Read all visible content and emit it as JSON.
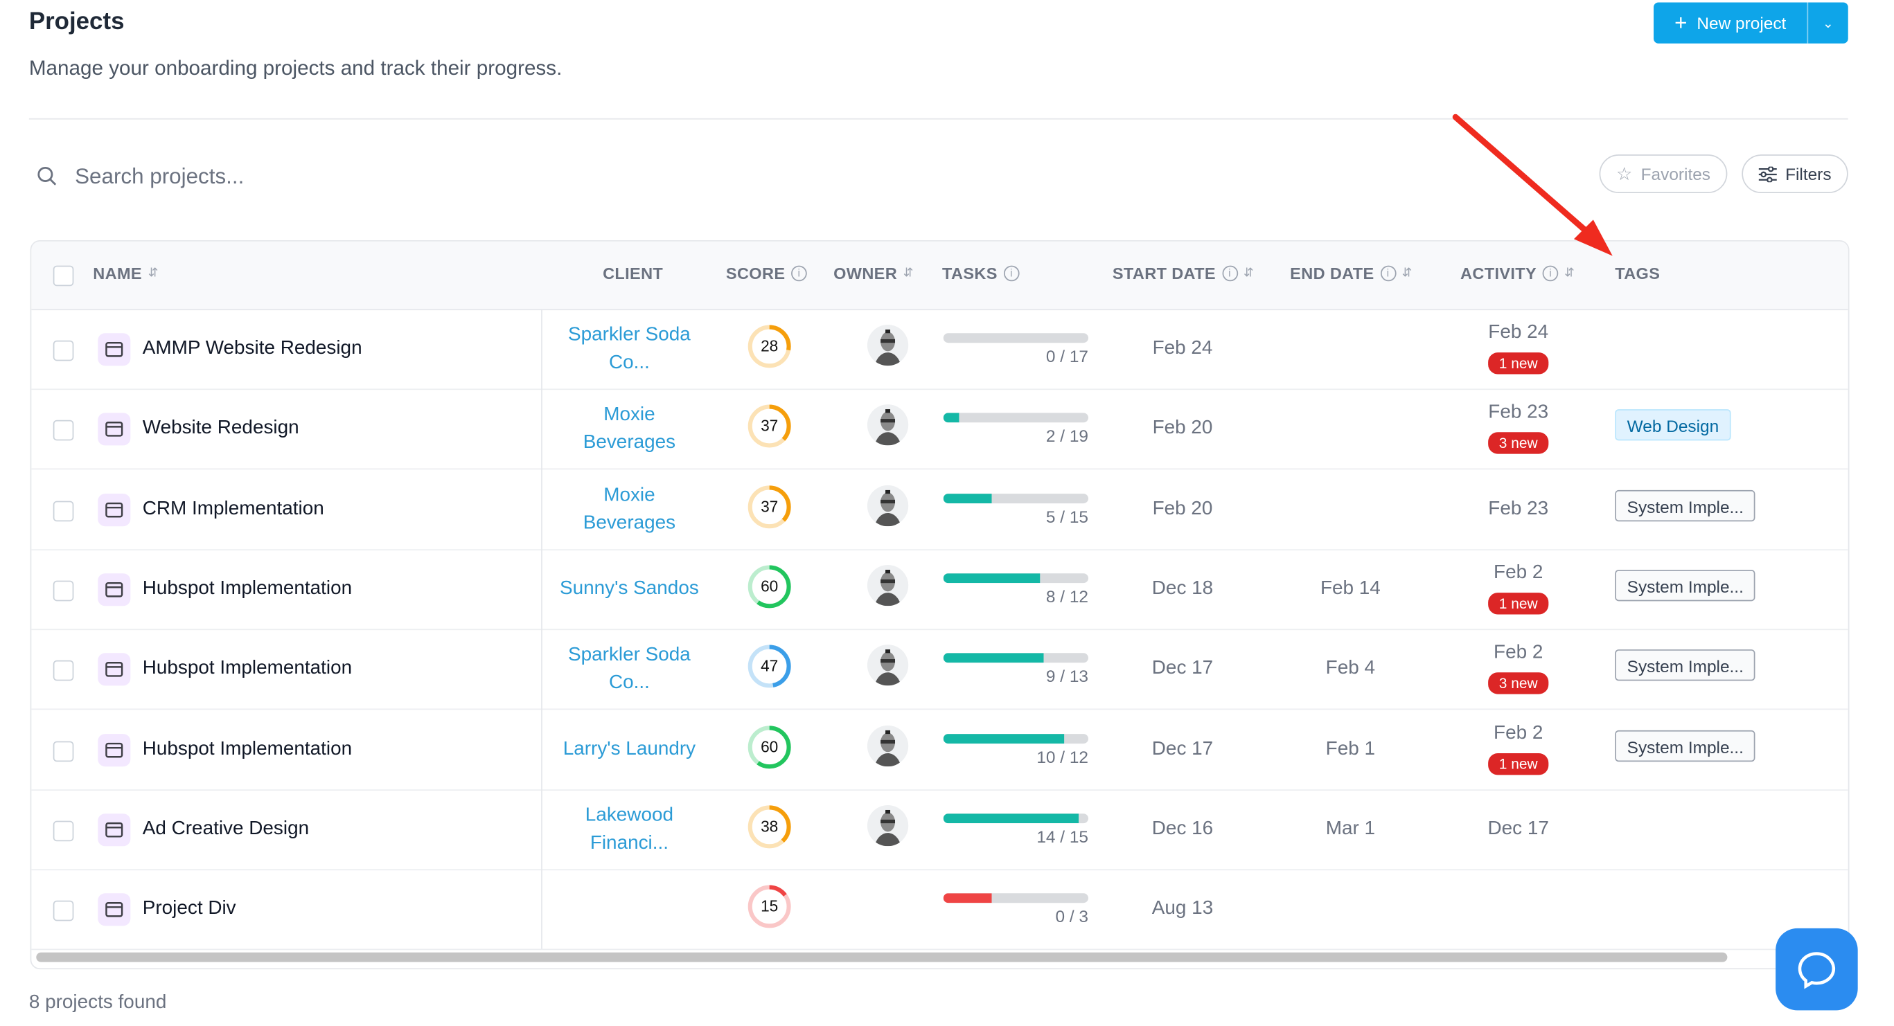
{
  "header": {
    "title": "Projects",
    "subtitle": "Manage your onboarding projects and track their progress.",
    "new_project_label": "New project"
  },
  "toolbar": {
    "search_placeholder": "Search projects...",
    "favorites_label": "Favorites",
    "filters_label": "Filters"
  },
  "columns": {
    "name": "NAME",
    "client": "CLIENT",
    "score": "SCORE",
    "owner": "OWNER",
    "tasks": "TASKS",
    "start_date": "START DATE",
    "end_date": "END DATE",
    "activity": "ACTIVITY",
    "tags": "TAGS"
  },
  "rows": [
    {
      "name": "AMMP Website Redesign",
      "client": [
        "Sparkler Soda",
        "Co..."
      ],
      "score": 28,
      "score_color": "#f59e0b",
      "done": 0,
      "total": 17,
      "tasks": "0 / 17",
      "bar_color": "#14b8a6",
      "start": "Feb 24",
      "end": "",
      "activity": "Feb 24",
      "badge": "1 new",
      "tag": "",
      "tag_style": ""
    },
    {
      "name": "Website Redesign",
      "client": [
        "Moxie",
        "Beverages"
      ],
      "score": 37,
      "score_color": "#f59e0b",
      "done": 2,
      "total": 19,
      "tasks": "2 / 19",
      "bar_color": "#14b8a6",
      "start": "Feb 20",
      "end": "",
      "activity": "Feb 23",
      "badge": "3 new",
      "tag": "Web Design",
      "tag_style": "blue"
    },
    {
      "name": "CRM Implementation",
      "client": [
        "Moxie",
        "Beverages"
      ],
      "score": 37,
      "score_color": "#f59e0b",
      "done": 5,
      "total": 15,
      "tasks": "5 / 15",
      "bar_color": "#14b8a6",
      "start": "Feb 20",
      "end": "",
      "activity": "Feb 23",
      "badge": "",
      "tag": "System Imple...",
      "tag_style": "gray"
    },
    {
      "name": "Hubspot Implementation",
      "client": [
        "Sunny's Sandos"
      ],
      "score": 60,
      "score_color": "#22c55e",
      "done": 8,
      "total": 12,
      "tasks": "8 / 12",
      "bar_color": "#14b8a6",
      "start": "Dec 18",
      "end": "Feb 14",
      "activity": "Feb 2",
      "badge": "1 new",
      "tag": "System Imple...",
      "tag_style": "gray"
    },
    {
      "name": "Hubspot Implementation",
      "client": [
        "Sparkler Soda",
        "Co..."
      ],
      "score": 47,
      "score_color": "#3b9ee8",
      "done": 9,
      "total": 13,
      "tasks": "9 / 13",
      "bar_color": "#14b8a6",
      "start": "Dec 17",
      "end": "Feb 4",
      "activity": "Feb 2",
      "badge": "3 new",
      "tag": "System Imple...",
      "tag_style": "gray"
    },
    {
      "name": "Hubspot Implementation",
      "client": [
        "Larry's Laundry"
      ],
      "score": 60,
      "score_color": "#22c55e",
      "done": 10,
      "total": 12,
      "tasks": "10 / 12",
      "bar_color": "#14b8a6",
      "start": "Dec 17",
      "end": "Feb 1",
      "activity": "Feb 2",
      "badge": "1 new",
      "tag": "System Imple...",
      "tag_style": "gray"
    },
    {
      "name": "Ad Creative Design",
      "client": [
        "Lakewood",
        "Financi..."
      ],
      "score": 38,
      "score_color": "#f59e0b",
      "done": 14,
      "total": 15,
      "tasks": "14 / 15",
      "bar_color": "#14b8a6",
      "start": "Dec 16",
      "end": "Mar 1",
      "activity": "Dec 17",
      "badge": "",
      "tag": "",
      "tag_style": ""
    },
    {
      "name": "Project Div",
      "client": [],
      "score": 15,
      "score_color": "#ef4444",
      "done": 0,
      "total": 3,
      "tasks": "0 / 3",
      "bar_color": "#ef4444",
      "bar_fill_pct": 33,
      "start": "Aug 13",
      "end": "",
      "activity": "",
      "badge": "",
      "tag": "",
      "tag_style": ""
    }
  ],
  "footer": {
    "count_text": "8 projects found"
  },
  "colors": {
    "accent": "#0ea5e9",
    "link": "#2b9bd6",
    "badge": "#dc2626",
    "annotation_arrow": "#ef2b1f",
    "help_button": "#2b8cf0"
  }
}
